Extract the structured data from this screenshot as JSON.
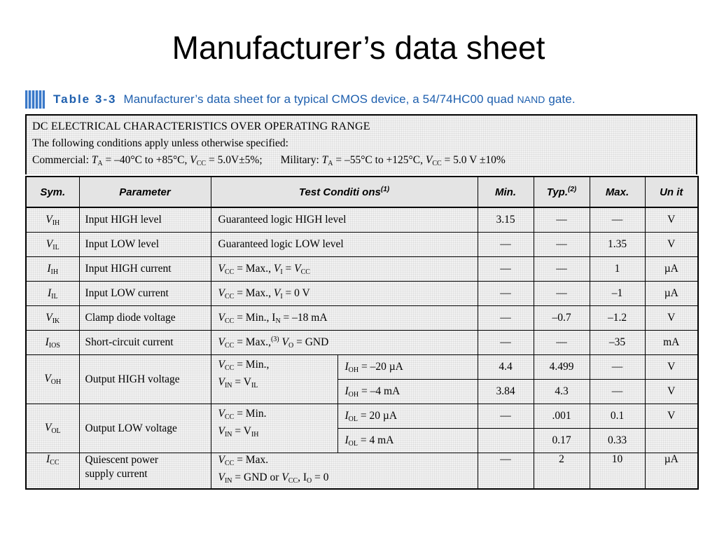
{
  "page": {
    "title": "Manufacturer’s data sheet"
  },
  "caption": {
    "label": "Table 3-3",
    "text": "Manufacturer’s data sheet for a typical CMOS device, a 54/74HC00 quad ",
    "sc": "NAND",
    "tail": " gate."
  },
  "header": {
    "line1": "DC ELECTRICAL CHARACTERISTICS OVER OPERATING RANGE",
    "line2": "The following conditions apply unless otherwise specified:",
    "commercial": {
      "label": "Commercial:",
      "ta_sub": "A",
      "ta_val": " = –40°C to +85°C, ",
      "vcc_sub": "CC",
      "vcc_val": " = 5.0V±5%;"
    },
    "military": {
      "label": "Military:",
      "ta_sub": "A",
      "ta_val": " = –55°C to +125°C, ",
      "vcc_sub": "CC",
      "vcc_val": " = 5.0 V ±10%"
    }
  },
  "table": {
    "columns": {
      "sym": "Sym.",
      "param": "Parameter",
      "test": "Test Conditi ons",
      "test_note": "(1)",
      "min": "Min.",
      "typ": "Typ.",
      "typ_note": "(2)",
      "max": "Max.",
      "unit": "Un it"
    },
    "rows": {
      "vih": {
        "sym": "V",
        "sub": "IH",
        "param": "Input HIGH level",
        "cond": "Guaranteed logic HIGH level",
        "min": "3.15",
        "typ": "—",
        "max": "—",
        "unit": "V"
      },
      "vil": {
        "sym": "V",
        "sub": "IL",
        "param": "Input LOW level",
        "cond": "Guaranteed logic LOW level",
        "min": "—",
        "typ": "—",
        "max": "1.35",
        "unit": "V"
      },
      "iih": {
        "sym": "I",
        "sub": "IH",
        "param": "Input HIGH current",
        "c_a": "V",
        "c_a_sub": "CC",
        "c_b": " = Max., ",
        "c_c": "V",
        "c_c_sub": "I",
        "c_d": " = ",
        "c_e": "V",
        "c_e_sub": "CC",
        "min": "—",
        "typ": "—",
        "max": "1",
        "unit": "µA"
      },
      "iil": {
        "sym": "I",
        "sub": "IL",
        "param": "Input LOW current",
        "c_a": "V",
        "c_a_sub": "CC",
        "c_b": " = Max., ",
        "c_c": "V",
        "c_c_sub": "I",
        "c_d": " = 0 V",
        "min": "—",
        "typ": "—",
        "max": "–1",
        "unit": "µA"
      },
      "vik": {
        "sym": "V",
        "sub": "IK",
        "param": "Clamp diode voltage",
        "c_a": "V",
        "c_a_sub": "CC",
        "c_b": " = Min., I",
        "c_b_sub": "N",
        "c_c": " = –18 mA",
        "min": "—",
        "typ": "–0.7",
        "max": "–1.2",
        "unit": "V"
      },
      "ios": {
        "sym": "I",
        "sub": "IOS",
        "param": "Short-circuit current",
        "c_a": "V",
        "c_a_sub": "CC",
        "c_b": " = Max.,",
        "c_b_sup": "(3)",
        "c_c": " V",
        "c_c_sub": "O",
        "c_d": " = GND",
        "min": "—",
        "typ": "—",
        "max": "–35",
        "unit": "mA"
      },
      "voh": {
        "sym": "V",
        "sub": "OH",
        "param": "Output HIGH voltage",
        "l1a": "V",
        "l1a_sub": "CC",
        "l1b": " = Min.,",
        "l2a": "V",
        "l2a_sub": "IN",
        "l2b": " = V",
        "l2b_sub": "IL",
        "r1": {
          "a": "I",
          "a_sub": "OH",
          "b": " = –20 µA",
          "min": "4.4",
          "typ": "4.499",
          "max": "—",
          "unit": "V"
        },
        "r2": {
          "a": "I",
          "a_sub": "OH",
          "b": " = –4 mA",
          "min": "3.84",
          "typ": "4.3",
          "max": "—",
          "unit": "V"
        }
      },
      "vol": {
        "sym": "V",
        "sub": "OL",
        "param": "Output LOW voltage",
        "l1a": "V",
        "l1a_sub": "CC",
        "l1b": " = Min.",
        "l2a": "V",
        "l2a_sub": "IN",
        "l2b": " = V",
        "l2b_sub": "IH",
        "r1": {
          "a": "I",
          "a_sub": "OL",
          "b": " = 20 µA",
          "min": "—",
          "typ": ".001",
          "max": "0.1",
          "unit": "V"
        },
        "r2": {
          "a": "I",
          "a_sub": "OL",
          "b": " = 4 mA",
          "min": "",
          "typ": "0.17",
          "max": "0.33",
          "unit": ""
        }
      },
      "icc": {
        "sym": "I",
        "sub": "CC",
        "param1": "Quiescent power",
        "param2": "supply current",
        "l1a": "V",
        "l1a_sub": "CC",
        "l1b": " = Max.",
        "l2a": "V",
        "l2a_sub": "IN",
        "l2b": " = GND or ",
        "l2c": "V",
        "l2c_sub": "CC",
        "l2d": ", I",
        "l2d_sub": "O",
        "l2e": " = 0",
        "min": "—",
        "typ": "2",
        "max": "10",
        "unit": "µA"
      }
    }
  }
}
